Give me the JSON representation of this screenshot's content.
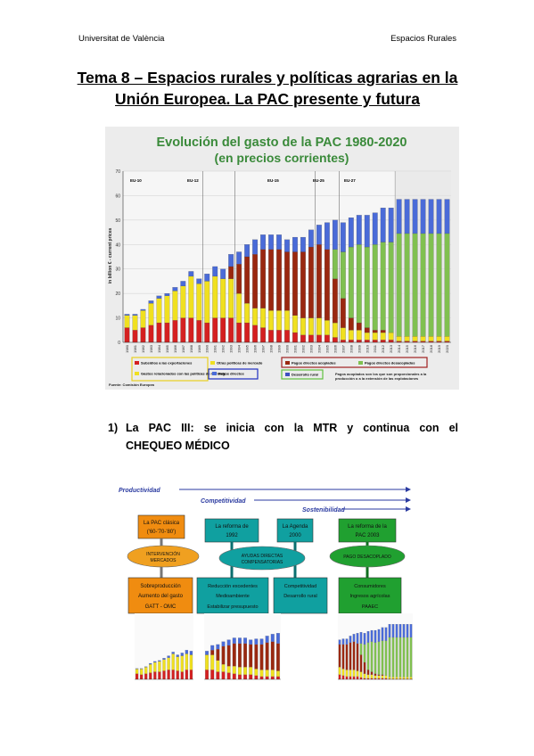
{
  "header": {
    "left": "Universitat de València",
    "right": "Espacios Rurales"
  },
  "title": {
    "line1": "Tema 8 – Espacios rurales y políticas agrarias en la",
    "line2": "Unión Europea. La PAC presente y futura"
  },
  "figure1": {
    "title_line1": "Evolución del gasto de la PAC 1980-2020",
    "title_line2": "(en precios corrientes)",
    "periods": [
      "EU-10",
      "EU-12",
      "EU-15",
      "EU-25",
      "EU-27"
    ],
    "legend": [
      {
        "label": "Subsidios a las exportaciones",
        "color": "#d42020"
      },
      {
        "label": "Otras políticas de mercado",
        "color": "#f0e020"
      },
      {
        "label": "Gastos relacionados con las políticas de mercado",
        "color": "#f0e020"
      },
      {
        "label": "Pagos directos",
        "color": "#4a6bd8"
      },
      {
        "label": "Pagos directos acoplados",
        "color": "#9a2810"
      },
      {
        "label": "Pagos directos desacoplados",
        "color": "#80c050"
      },
      {
        "label": "Desarrollo rural",
        "color": "#3d4fc0"
      }
    ],
    "note": "Pagos acoplados son los que son proporcionales a la producción o a la extensión de las explotaciones",
    "source": "Fuente: Comisión Europea"
  },
  "chart_data": {
    "type": "bar",
    "ylabel": "in billion € - current prices",
    "ylim": [
      0,
      70
    ],
    "yticks": [
      0,
      10,
      20,
      30,
      40,
      50,
      60,
      70
    ],
    "categories": [
      "1980",
      "1981",
      "1982",
      "1983",
      "1984",
      "1985",
      "1986",
      "1987",
      "1988",
      "1989",
      "1990",
      "1991",
      "1992",
      "1993",
      "1994",
      "1995",
      "1996",
      "1997",
      "1998",
      "1999",
      "2000",
      "2001",
      "2002",
      "2003",
      "2004",
      "2005",
      "2006",
      "2007",
      "2008",
      "2009",
      "2010",
      "2011",
      "2012",
      "2013",
      "2014",
      "2015",
      "2016",
      "2017",
      "2018",
      "2019",
      "2020"
    ],
    "series": [
      {
        "name": "Subsidios a las exportaciones",
        "color": "#d42020",
        "values": [
          6,
          5,
          6,
          7,
          8,
          8,
          9,
          10,
          10,
          9,
          8,
          10,
          10,
          10,
          8,
          8,
          7,
          6,
          5,
          5,
          5,
          4,
          3,
          3,
          3,
          3,
          2,
          1,
          1,
          1,
          1,
          1,
          1,
          1,
          0.5,
          0.5,
          0.5,
          0.5,
          0.5,
          0.5,
          0.5
        ]
      },
      {
        "name": "Otras políticas de mercado",
        "color": "#f0e020",
        "values": [
          5,
          6,
          7,
          9,
          10,
          11,
          12,
          13,
          17,
          15,
          17,
          17,
          16,
          16,
          12,
          8,
          7,
          8,
          8,
          8,
          8,
          7,
          7,
          7,
          7,
          6,
          6,
          5,
          4,
          4,
          3,
          3,
          3,
          3,
          2,
          2,
          2,
          2,
          2,
          2,
          2
        ]
      },
      {
        "name": "Pagos directos acoplados",
        "color": "#9a2810",
        "values": [
          0,
          0,
          0,
          0,
          0,
          0,
          0,
          0,
          0,
          0,
          0,
          0,
          0,
          5,
          12,
          19,
          22,
          24,
          25,
          25,
          24,
          26,
          27,
          29,
          30,
          29,
          18,
          12,
          5,
          3,
          2,
          1,
          1,
          0,
          0,
          0,
          0,
          0,
          0,
          0,
          0
        ]
      },
      {
        "name": "Pagos directos desacoplados",
        "color": "#80c050",
        "values": [
          0,
          0,
          0,
          0,
          0,
          0,
          0,
          0,
          0,
          0,
          0,
          0,
          0,
          0,
          0,
          0,
          0,
          0,
          0,
          0,
          0,
          0,
          0,
          0,
          0,
          0,
          12,
          19,
          29,
          32,
          33,
          35,
          36,
          37,
          42,
          42,
          42,
          42,
          42,
          42,
          42
        ]
      },
      {
        "name": "Desarrollo rural",
        "color": "#4a6bd8",
        "values": [
          0.5,
          0.5,
          0.5,
          1,
          1,
          1,
          1.5,
          2,
          2,
          2,
          3,
          4,
          4,
          5,
          5,
          5,
          6,
          6,
          6,
          6,
          5,
          6,
          6,
          7,
          8,
          11,
          12,
          12,
          12,
          12,
          13,
          13,
          14,
          14,
          14,
          14,
          14,
          14,
          14,
          14,
          14
        ]
      }
    ]
  },
  "section": {
    "number": "1)",
    "line1": "La PAC III: se inicia con la MTR y continua con el",
    "line2": "CHEQUEO MÉDICO"
  },
  "figure2": {
    "arrows": [
      "Productividad",
      "Competitividad",
      "Sostenibilidad"
    ],
    "top_boxes": [
      {
        "l1": "La PAC clásica",
        "l2": "('60-'70-'80')"
      },
      {
        "l1": "La reforma de",
        "l2": "1992"
      },
      {
        "l1": "La Agenda",
        "l2": "2000"
      },
      {
        "l1": "La reforma de la",
        "l2": "PAC 2003"
      }
    ],
    "ellipses": [
      {
        "l1": "INTERVENCIÓN",
        "l2": "MERCADOS"
      },
      {
        "l1": "AYUDAS DIRECTAS",
        "l2": "COMPENSATORIAS"
      },
      {
        "l1": "PAGO DESACOPLADO",
        "l2": ""
      }
    ],
    "bottom_boxes": [
      {
        "l1": "Sobreproducción",
        "l2": "Aumento del gasto",
        "l3": "GATT - OMC"
      },
      {
        "l1": "Reducción excedentes",
        "l2": "Medioambiente",
        "l3": "Estabilizar presupuesto"
      },
      {
        "l1": "Competitividad",
        "l2": "Desarrollo rural",
        "l3": ""
      },
      {
        "l1": "Consumidores",
        "l2": "Ingresos agrícolas",
        "l3": "PAAEC"
      }
    ]
  }
}
